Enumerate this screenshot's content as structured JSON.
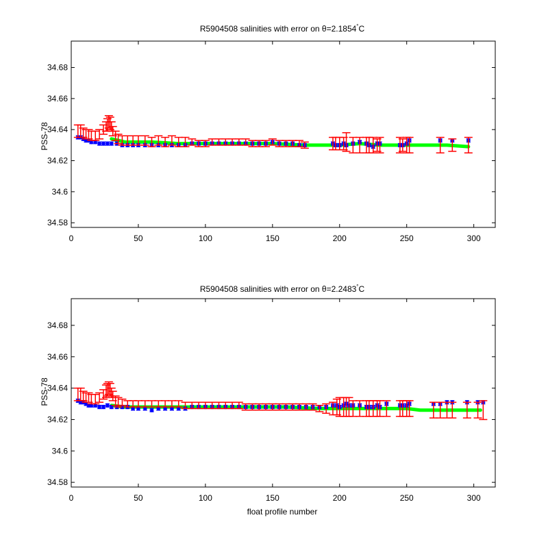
{
  "chart_data": [
    {
      "type": "scatter",
      "title": "R5904508 salinities with error on θ=2.1854°C",
      "title_main": "R5904508 salinities with error on θ=2.1854",
      "title_deg": "°",
      "title_unit": "C",
      "xlabel": "",
      "ylabel": "PSS-78",
      "xlim": [
        0,
        316
      ],
      "ylim": [
        34.577,
        34.697
      ],
      "x_ticks": [
        "0",
        "50",
        "100",
        "150",
        "200",
        "250",
        "300"
      ],
      "y_ticks": [
        "34.58",
        "34.6",
        "34.62",
        "34.64",
        "34.66",
        "34.68"
      ],
      "x_tick_values": [
        0,
        50,
        100,
        150,
        200,
        250,
        300
      ],
      "y_tick_values": [
        34.58,
        34.6,
        34.62,
        34.64,
        34.66,
        34.68
      ],
      "grid": false,
      "colors": {
        "raw": "#ff0000",
        "calibrated": "#0000ff",
        "mapped": "#00ff00"
      },
      "series": [
        {
          "kind": "mapped",
          "x": [
            30,
            40,
            60,
            80,
            100,
            120,
            150,
            175,
            200,
            215,
            230,
            245,
            260,
            280,
            296
          ],
          "y": [
            34.634,
            34.632,
            34.632,
            34.631,
            34.631,
            34.631,
            34.631,
            34.63,
            34.63,
            34.631,
            34.63,
            34.63,
            34.63,
            34.63,
            34.629
          ]
        },
        {
          "kind": "calibrated",
          "x": [
            5,
            7,
            9,
            11,
            13,
            15,
            18,
            21,
            24,
            27,
            30,
            34,
            38,
            42,
            46,
            50,
            55,
            60,
            65,
            70,
            75,
            80,
            85,
            90,
            95,
            100,
            105,
            110,
            115,
            120,
            125,
            130,
            135,
            140,
            145,
            150,
            155,
            160,
            165,
            170,
            174,
            195,
            197,
            200,
            203,
            205,
            210,
            215,
            220,
            222,
            225,
            228,
            230,
            245,
            247,
            250,
            252,
            275,
            284,
            296
          ],
          "y": [
            34.635,
            34.635,
            34.634,
            34.633,
            34.633,
            34.632,
            34.632,
            34.631,
            34.631,
            34.631,
            34.631,
            34.631,
            34.63,
            34.63,
            34.63,
            34.63,
            34.63,
            34.63,
            34.63,
            34.63,
            34.63,
            34.63,
            34.63,
            34.631,
            34.631,
            34.631,
            34.631,
            34.631,
            34.631,
            34.631,
            34.631,
            34.631,
            34.631,
            34.631,
            34.631,
            34.632,
            34.631,
            34.631,
            34.631,
            34.63,
            34.63,
            34.631,
            34.63,
            34.63,
            34.631,
            34.63,
            34.631,
            34.632,
            34.631,
            34.63,
            34.629,
            34.631,
            34.631,
            34.63,
            34.63,
            34.631,
            34.633,
            34.633,
            34.633,
            34.633
          ],
          "err": [
            0.001,
            0.001,
            0.001,
            0.001,
            0.001,
            0.001,
            0.001,
            0.001,
            0.001,
            0.001,
            0.001,
            0.001,
            0.001,
            0.001,
            0.001,
            0.001,
            0.001,
            0.001,
            0.001,
            0.001,
            0.001,
            0.001,
            0.001,
            0.001,
            0.001,
            0.001,
            0.001,
            0.001,
            0.001,
            0.001,
            0.001,
            0.001,
            0.001,
            0.001,
            0.001,
            0.001,
            0.001,
            0.001,
            0.001,
            0.001,
            0.001,
            0.001,
            0.001,
            0.001,
            0.001,
            0.001,
            0.001,
            0.001,
            0.001,
            0.001,
            0.001,
            0.001,
            0.001,
            0.001,
            0.001,
            0.001,
            0.001,
            0.001,
            0.001,
            0.001
          ]
        },
        {
          "kind": "raw",
          "x": [
            5,
            7,
            9,
            11,
            13,
            15,
            18,
            21,
            24,
            26,
            27,
            28,
            29,
            30,
            31,
            33,
            35,
            38,
            42,
            46,
            50,
            55,
            60,
            65,
            70,
            75,
            80,
            85,
            90,
            95,
            100,
            105,
            110,
            115,
            120,
            125,
            130,
            135,
            140,
            145,
            150,
            155,
            160,
            165,
            170,
            174,
            195,
            197,
            200,
            203,
            205,
            210,
            215,
            220,
            222,
            225,
            228,
            230,
            245,
            247,
            250,
            252,
            275,
            284,
            296
          ],
          "y": [
            34.639,
            34.639,
            34.638,
            34.637,
            34.637,
            34.636,
            34.636,
            34.637,
            34.64,
            34.642,
            34.643,
            34.645,
            34.644,
            34.642,
            34.639,
            34.636,
            34.634,
            34.633,
            34.633,
            34.633,
            34.633,
            34.633,
            34.632,
            34.633,
            34.632,
            34.633,
            34.632,
            34.632,
            34.632,
            34.631,
            34.631,
            34.632,
            34.632,
            34.632,
            34.632,
            34.632,
            34.632,
            34.631,
            34.631,
            34.631,
            34.632,
            34.631,
            34.631,
            34.631,
            34.631,
            34.63,
            34.631,
            34.631,
            34.631,
            34.631,
            34.632,
            34.63,
            34.63,
            34.63,
            34.63,
            34.63,
            34.63,
            34.63,
            34.63,
            34.63,
            34.63,
            34.63,
            34.63,
            34.63,
            34.63
          ],
          "err": [
            0.004,
            0.004,
            0.003,
            0.003,
            0.003,
            0.003,
            0.003,
            0.003,
            0.003,
            0.003,
            0.004,
            0.004,
            0.004,
            0.003,
            0.003,
            0.003,
            0.003,
            0.003,
            0.003,
            0.003,
            0.003,
            0.003,
            0.003,
            0.003,
            0.003,
            0.003,
            0.003,
            0.003,
            0.002,
            0.002,
            0.002,
            0.002,
            0.002,
            0.002,
            0.002,
            0.002,
            0.002,
            0.002,
            0.002,
            0.002,
            0.002,
            0.002,
            0.002,
            0.002,
            0.002,
            0.002,
            0.004,
            0.004,
            0.004,
            0.004,
            0.006,
            0.005,
            0.005,
            0.005,
            0.005,
            0.005,
            0.004,
            0.005,
            0.005,
            0.004,
            0.005,
            0.005,
            0.005,
            0.004,
            0.005
          ]
        }
      ]
    },
    {
      "type": "scatter",
      "title": "R5904508 salinities with error on θ=2.2483°C",
      "title_main": "R5904508 salinities with error on θ=2.2483",
      "title_deg": "°",
      "title_unit": "C",
      "xlabel": "float profile number",
      "ylabel": "PSS-78",
      "xlim": [
        0,
        316
      ],
      "ylim": [
        34.577,
        34.697
      ],
      "x_ticks": [
        "0",
        "50",
        "100",
        "150",
        "200",
        "250",
        "300"
      ],
      "y_ticks": [
        "34.58",
        "34.6",
        "34.62",
        "34.64",
        "34.66",
        "34.68"
      ],
      "x_tick_values": [
        0,
        50,
        100,
        150,
        200,
        250,
        300
      ],
      "y_tick_values": [
        34.58,
        34.6,
        34.62,
        34.64,
        34.66,
        34.68
      ],
      "grid": false,
      "colors": {
        "raw": "#ff0000",
        "calibrated": "#0000ff",
        "mapped": "#00ff00"
      },
      "series": [
        {
          "kind": "mapped",
          "x": [
            30,
            40,
            60,
            80,
            100,
            130,
            160,
            185,
            200,
            215,
            230,
            250,
            260,
            280,
            305
          ],
          "y": [
            34.629,
            34.628,
            34.628,
            34.628,
            34.628,
            34.628,
            34.628,
            34.627,
            34.627,
            34.627,
            34.627,
            34.627,
            34.626,
            34.626,
            34.626
          ]
        },
        {
          "kind": "calibrated",
          "x": [
            5,
            7,
            9,
            11,
            13,
            15,
            18,
            21,
            24,
            27,
            30,
            34,
            38,
            42,
            46,
            50,
            55,
            60,
            65,
            70,
            75,
            80,
            85,
            90,
            95,
            100,
            105,
            110,
            115,
            120,
            125,
            130,
            135,
            140,
            145,
            150,
            155,
            160,
            165,
            170,
            175,
            180,
            185,
            190,
            195,
            198,
            200,
            203,
            205,
            207,
            210,
            215,
            220,
            222,
            225,
            228,
            230,
            235,
            245,
            247,
            250,
            252,
            270,
            275,
            280,
            284,
            295,
            303,
            307
          ],
          "y": [
            34.632,
            34.631,
            34.631,
            34.63,
            34.629,
            34.629,
            34.629,
            34.628,
            34.628,
            34.629,
            34.628,
            34.628,
            34.628,
            34.628,
            34.627,
            34.627,
            34.627,
            34.626,
            34.627,
            34.627,
            34.627,
            34.627,
            34.627,
            34.628,
            34.628,
            34.628,
            34.628,
            34.628,
            34.628,
            34.628,
            34.628,
            34.628,
            34.628,
            34.628,
            34.628,
            34.628,
            34.628,
            34.628,
            34.628,
            34.628,
            34.628,
            34.628,
            34.628,
            34.628,
            34.629,
            34.629,
            34.628,
            34.629,
            34.63,
            34.629,
            34.629,
            34.629,
            34.628,
            34.628,
            34.628,
            34.629,
            34.628,
            34.63,
            34.629,
            34.629,
            34.629,
            34.63,
            34.63,
            34.63,
            34.631,
            34.631,
            34.631,
            34.631,
            34.631
          ],
          "err": [
            0.001,
            0.001,
            0.001,
            0.001,
            0.001,
            0.001,
            0.001,
            0.001,
            0.001,
            0.001,
            0.001,
            0.001,
            0.001,
            0.001,
            0.001,
            0.001,
            0.001,
            0.001,
            0.001,
            0.001,
            0.001,
            0.001,
            0.001,
            0.001,
            0.001,
            0.001,
            0.001,
            0.001,
            0.001,
            0.001,
            0.001,
            0.001,
            0.001,
            0.001,
            0.001,
            0.001,
            0.001,
            0.001,
            0.001,
            0.001,
            0.001,
            0.001,
            0.001,
            0.001,
            0.001,
            0.001,
            0.001,
            0.001,
            0.001,
            0.001,
            0.001,
            0.001,
            0.001,
            0.001,
            0.001,
            0.001,
            0.001,
            0.001,
            0.001,
            0.001,
            0.001,
            0.001,
            0.001,
            0.001,
            0.001,
            0.001,
            0.001,
            0.001,
            0.001
          ]
        },
        {
          "kind": "raw",
          "x": [
            5,
            7,
            9,
            11,
            13,
            15,
            18,
            21,
            24,
            26,
            27,
            28,
            29,
            30,
            31,
            33,
            35,
            38,
            42,
            46,
            50,
            55,
            60,
            65,
            70,
            75,
            80,
            85,
            90,
            95,
            100,
            105,
            110,
            115,
            120,
            125,
            130,
            135,
            140,
            145,
            150,
            155,
            160,
            165,
            170,
            175,
            180,
            185,
            190,
            195,
            198,
            200,
            203,
            205,
            207,
            210,
            215,
            220,
            222,
            225,
            228,
            230,
            235,
            245,
            247,
            250,
            252,
            270,
            275,
            280,
            284,
            295,
            303,
            307
          ],
          "y": [
            34.636,
            34.636,
            34.635,
            34.634,
            34.634,
            34.633,
            34.633,
            34.634,
            34.636,
            34.638,
            34.639,
            34.64,
            34.639,
            34.637,
            34.635,
            34.632,
            34.631,
            34.631,
            34.63,
            34.63,
            34.63,
            34.63,
            34.63,
            34.63,
            34.63,
            34.63,
            34.63,
            34.629,
            34.629,
            34.629,
            34.629,
            34.629,
            34.629,
            34.629,
            34.629,
            34.629,
            34.628,
            34.628,
            34.628,
            34.628,
            34.628,
            34.628,
            34.628,
            34.628,
            34.628,
            34.628,
            34.628,
            34.627,
            34.627,
            34.627,
            34.628,
            34.628,
            34.628,
            34.628,
            34.628,
            34.627,
            34.627,
            34.627,
            34.627,
            34.627,
            34.627,
            34.627,
            34.627,
            34.627,
            34.627,
            34.627,
            34.627,
            34.626,
            34.626,
            34.626,
            34.626,
            34.626,
            34.626,
            34.626
          ],
          "err": [
            0.004,
            0.004,
            0.003,
            0.003,
            0.003,
            0.003,
            0.003,
            0.003,
            0.003,
            0.004,
            0.004,
            0.004,
            0.004,
            0.003,
            0.003,
            0.003,
            0.003,
            0.002,
            0.002,
            0.002,
            0.002,
            0.002,
            0.002,
            0.002,
            0.002,
            0.002,
            0.002,
            0.002,
            0.002,
            0.002,
            0.002,
            0.002,
            0.002,
            0.002,
            0.002,
            0.002,
            0.002,
            0.002,
            0.002,
            0.002,
            0.002,
            0.002,
            0.002,
            0.002,
            0.002,
            0.002,
            0.002,
            0.002,
            0.003,
            0.004,
            0.005,
            0.006,
            0.006,
            0.006,
            0.006,
            0.005,
            0.005,
            0.005,
            0.005,
            0.005,
            0.005,
            0.005,
            0.005,
            0.005,
            0.005,
            0.005,
            0.005,
            0.005,
            0.005,
            0.005,
            0.005,
            0.005,
            0.005,
            0.006
          ]
        }
      ]
    }
  ]
}
